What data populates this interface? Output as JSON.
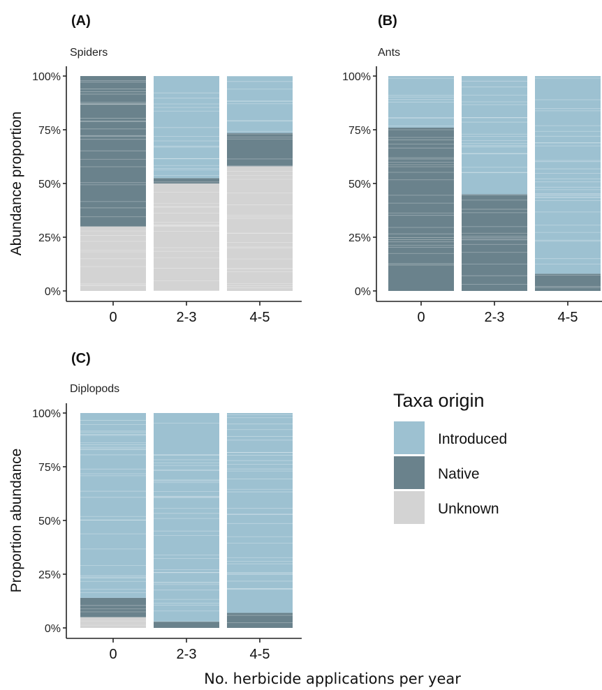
{
  "colors": {
    "Introduced": "#9dc1d1",
    "Native": "#6a828c",
    "Unknown": "#d3d3d3",
    "stripe": "#ffffff"
  },
  "x_axis_title": "No. herbicide applications per year",
  "legend": {
    "title": "Taxa origin",
    "items": [
      "Introduced",
      "Native",
      "Unknown"
    ]
  },
  "chart_data": [
    {
      "type": "bar",
      "stacked": true,
      "panel_letter": "(A)",
      "title": "Spiders",
      "ylabel": "Abundance proportion",
      "categories": [
        "0",
        "2-3",
        "4-5"
      ],
      "yticks": [
        "0%",
        "25%",
        "50%",
        "75%",
        "100%"
      ],
      "ylim": [
        0,
        100
      ],
      "series": [
        {
          "name": "Unknown",
          "values": [
            30,
            50,
            58
          ]
        },
        {
          "name": "Native",
          "values": [
            70,
            2.5,
            15.5
          ]
        },
        {
          "name": "Introduced",
          "values": [
            0,
            47.5,
            26.5
          ]
        }
      ]
    },
    {
      "type": "bar",
      "stacked": true,
      "panel_letter": "(B)",
      "title": "Ants",
      "ylabel": "",
      "categories": [
        "0",
        "2-3",
        "4-5"
      ],
      "yticks": [
        "0%",
        "25%",
        "50%",
        "75%",
        "100%"
      ],
      "ylim": [
        0,
        100
      ],
      "series": [
        {
          "name": "Unknown",
          "values": [
            0,
            0,
            0
          ]
        },
        {
          "name": "Native",
          "values": [
            76,
            45,
            8
          ]
        },
        {
          "name": "Introduced",
          "values": [
            24,
            55,
            92
          ]
        }
      ]
    },
    {
      "type": "bar",
      "stacked": true,
      "panel_letter": "(C)",
      "title": "Diplopods",
      "ylabel": "Proportion abundance",
      "categories": [
        "0",
        "2-3",
        "4-5"
      ],
      "yticks": [
        "0%",
        "25%",
        "50%",
        "75%",
        "100%"
      ],
      "ylim": [
        0,
        100
      ],
      "series": [
        {
          "name": "Unknown",
          "values": [
            5,
            0,
            0
          ]
        },
        {
          "name": "Native",
          "values": [
            9,
            3,
            7
          ]
        },
        {
          "name": "Introduced",
          "values": [
            86,
            97,
            93
          ]
        }
      ]
    }
  ]
}
